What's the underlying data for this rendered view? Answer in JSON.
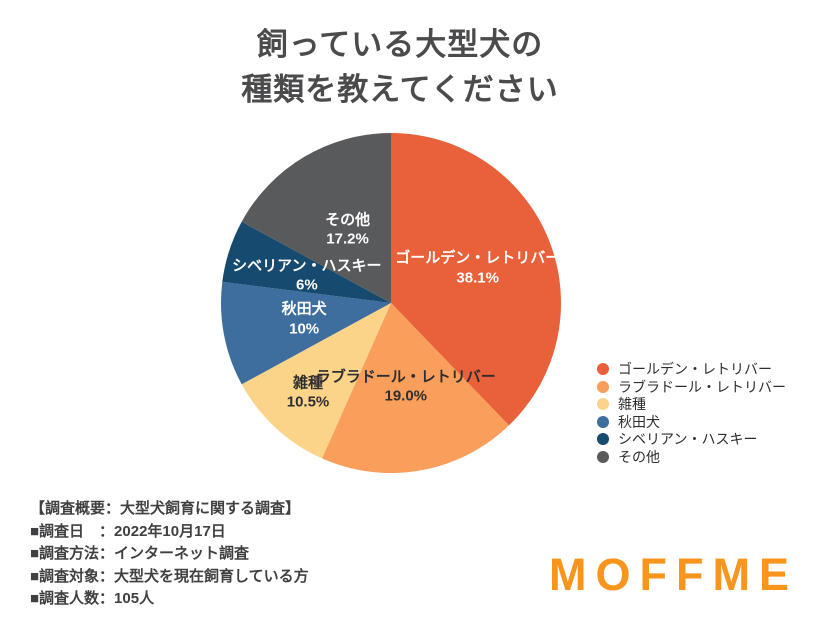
{
  "title": {
    "line1": "飼っている大型犬の",
    "line2": "種類を教えてください"
  },
  "chart_data": {
    "type": "pie",
    "title": "飼っている大型犬の種類を教えてください",
    "start_angle_deg": 0,
    "direction": "clockwise",
    "legend_position": "right",
    "slices": [
      {
        "label": "ゴールデン・レトリバー",
        "value": 38.1,
        "display": "38.1%",
        "color": "#e8613a",
        "text_color": "#ffffff",
        "label_radius": 0.55
      },
      {
        "label": "ラブラドール・レトリバー",
        "value": 19.0,
        "display": "19.0%",
        "color": "#fa9e5c",
        "text_color": "#2e2e30",
        "label_radius": 0.5
      },
      {
        "label": "雑種",
        "value": 10.5,
        "display": "10.5%",
        "color": "#fcd489",
        "text_color": "#2e2e30",
        "label_radius": 0.72
      },
      {
        "label": "秋田犬",
        "value": 10,
        "display": "10%",
        "color": "#3e6e9e",
        "text_color": "#ffffff",
        "label_radius": 0.52
      },
      {
        "label": "シベリアン・ハスキー",
        "value": 6,
        "display": "6%",
        "color": "#164a6e",
        "text_color": "#ffffff",
        "label_radius": 0.52
      },
      {
        "label": "その他",
        "value": 17.2,
        "display": "17.2%",
        "color": "#595a5c",
        "text_color": "#ffffff",
        "label_radius": 0.5
      }
    ]
  },
  "survey": {
    "lines": [
      "【調査概要：大型犬飼育に関する調査】",
      "■調査日　：2022年10月17日",
      "■調査方法：インターネット調査",
      "■調査対象：大型犬を現在飼育している方",
      "■調査人数：105人"
    ]
  },
  "logo": {
    "text": "MOFFME",
    "color": "#f8951d"
  }
}
